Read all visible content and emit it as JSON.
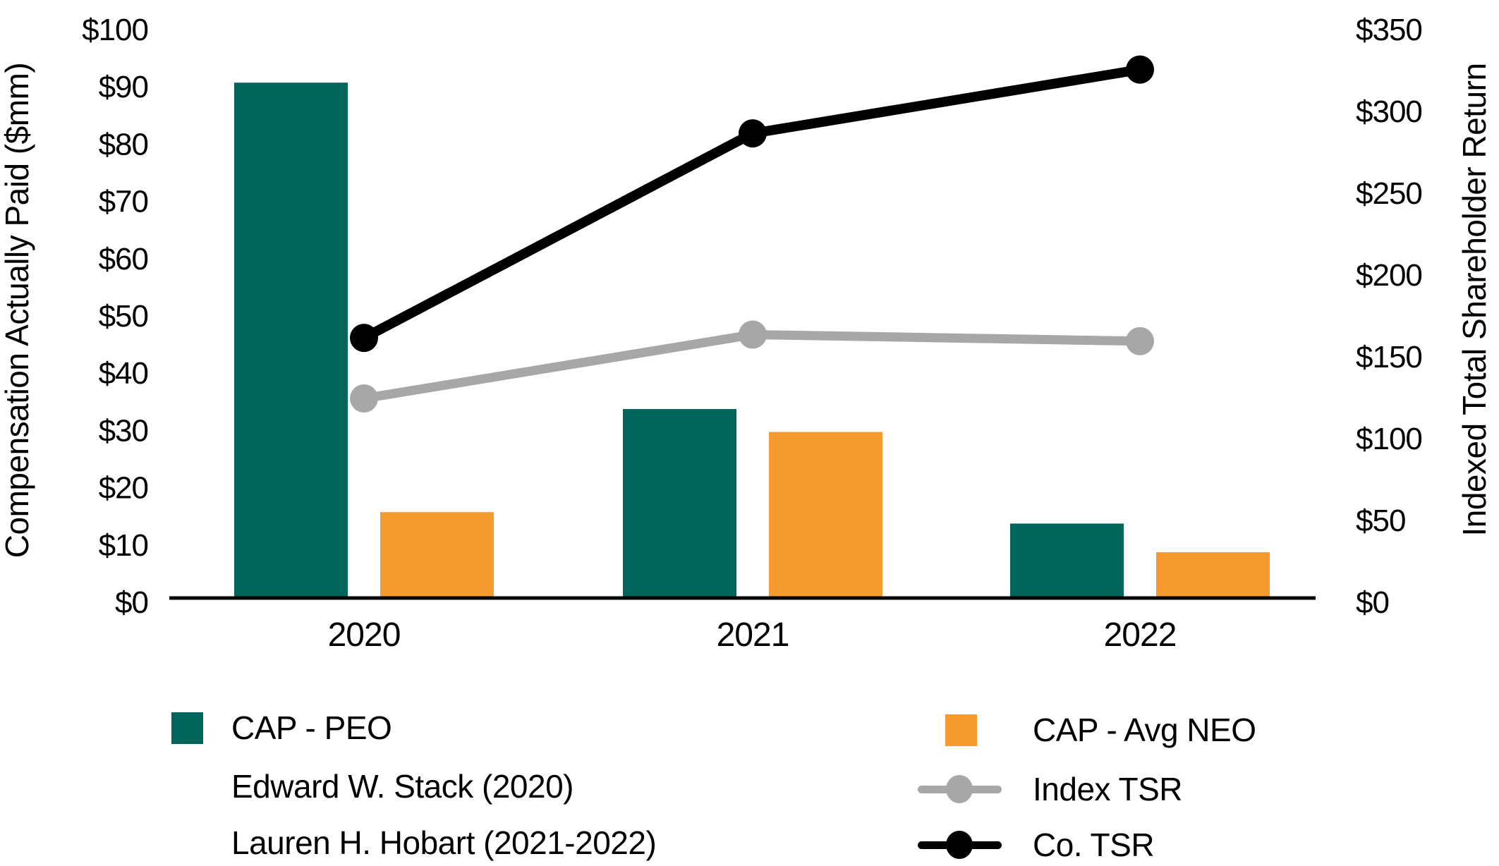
{
  "chart_data": {
    "type": "bar+line",
    "categories": [
      "2020",
      "2021",
      "2022"
    ],
    "left_axis": {
      "label": "Compensation Actually Paid ($mm)",
      "min": 0,
      "max": 100,
      "step": 10,
      "tick_prefix": "$"
    },
    "right_axis": {
      "label": "Indexed Total Shareholder Return",
      "min": 0,
      "max": 350,
      "step": 50,
      "tick_prefix": "$"
    },
    "bar_series": [
      {
        "name": "CAP - PEO",
        "axis": "left",
        "color": "#00655A",
        "values": [
          90,
          33,
          13
        ]
      },
      {
        "name": "CAP - Avg NEO",
        "axis": "left",
        "color": "#F69B30",
        "values": [
          15,
          29,
          8
        ]
      }
    ],
    "line_series": [
      {
        "name": "Index TSR",
        "axis": "right",
        "color": "#A7A7A7",
        "values": [
          122,
          161,
          157
        ]
      },
      {
        "name": "Co. TSR",
        "axis": "right",
        "color": "#000000",
        "values": [
          159,
          284,
          323
        ]
      }
    ],
    "legend_position": "bottom",
    "grid": false
  },
  "legend": {
    "peo_note_1": "Edward W. Stack (2020)",
    "peo_note_2": "Lauren H. Hobart (2021-2022)"
  }
}
